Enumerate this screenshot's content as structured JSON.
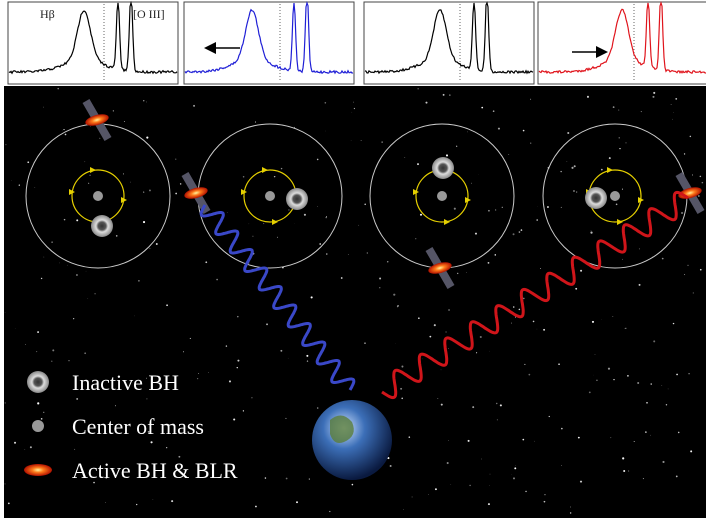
{
  "spectra": {
    "line_left": "Hβ",
    "line_right": "[O III]"
  },
  "legend": {
    "items": [
      "Inactive BH",
      "Center of mass",
      "Active BH & BLR"
    ]
  }
}
